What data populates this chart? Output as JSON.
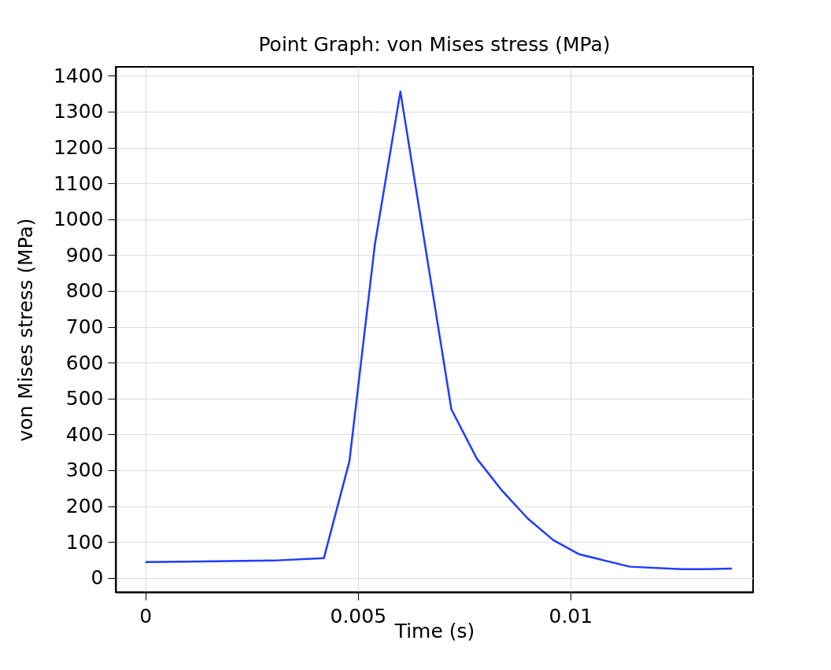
{
  "chart_data": {
    "type": "line",
    "title": "Point Graph: von Mises stress (MPa)",
    "xlabel": "Time (s)",
    "ylabel": "von Mises stress (MPa)",
    "x": [
      0,
      0.003,
      0.0042,
      0.0048,
      0.0054,
      0.006,
      0.0072,
      0.0078,
      0.0084,
      0.009,
      0.0096,
      0.0102,
      0.0114,
      0.0126,
      0.0132,
      0.0138
    ],
    "series": [
      {
        "color": "#1f3cff",
        "values": [
          44,
          48,
          55,
          325,
          930,
          1356,
          470,
          332,
          242,
          165,
          105,
          66,
          31,
          24,
          24,
          26
        ]
      }
    ],
    "xlim": [
      -0.0007,
      0.0143
    ],
    "ylim": [
      -40,
      1425
    ],
    "xticks": [
      0,
      0.005,
      0.01
    ],
    "yticks": [
      0,
      100,
      200,
      300,
      400,
      500,
      600,
      700,
      800,
      900,
      1000,
      1100,
      1200,
      1300,
      1400
    ],
    "grid": true,
    "marker": "none",
    "line_style": "solid"
  }
}
